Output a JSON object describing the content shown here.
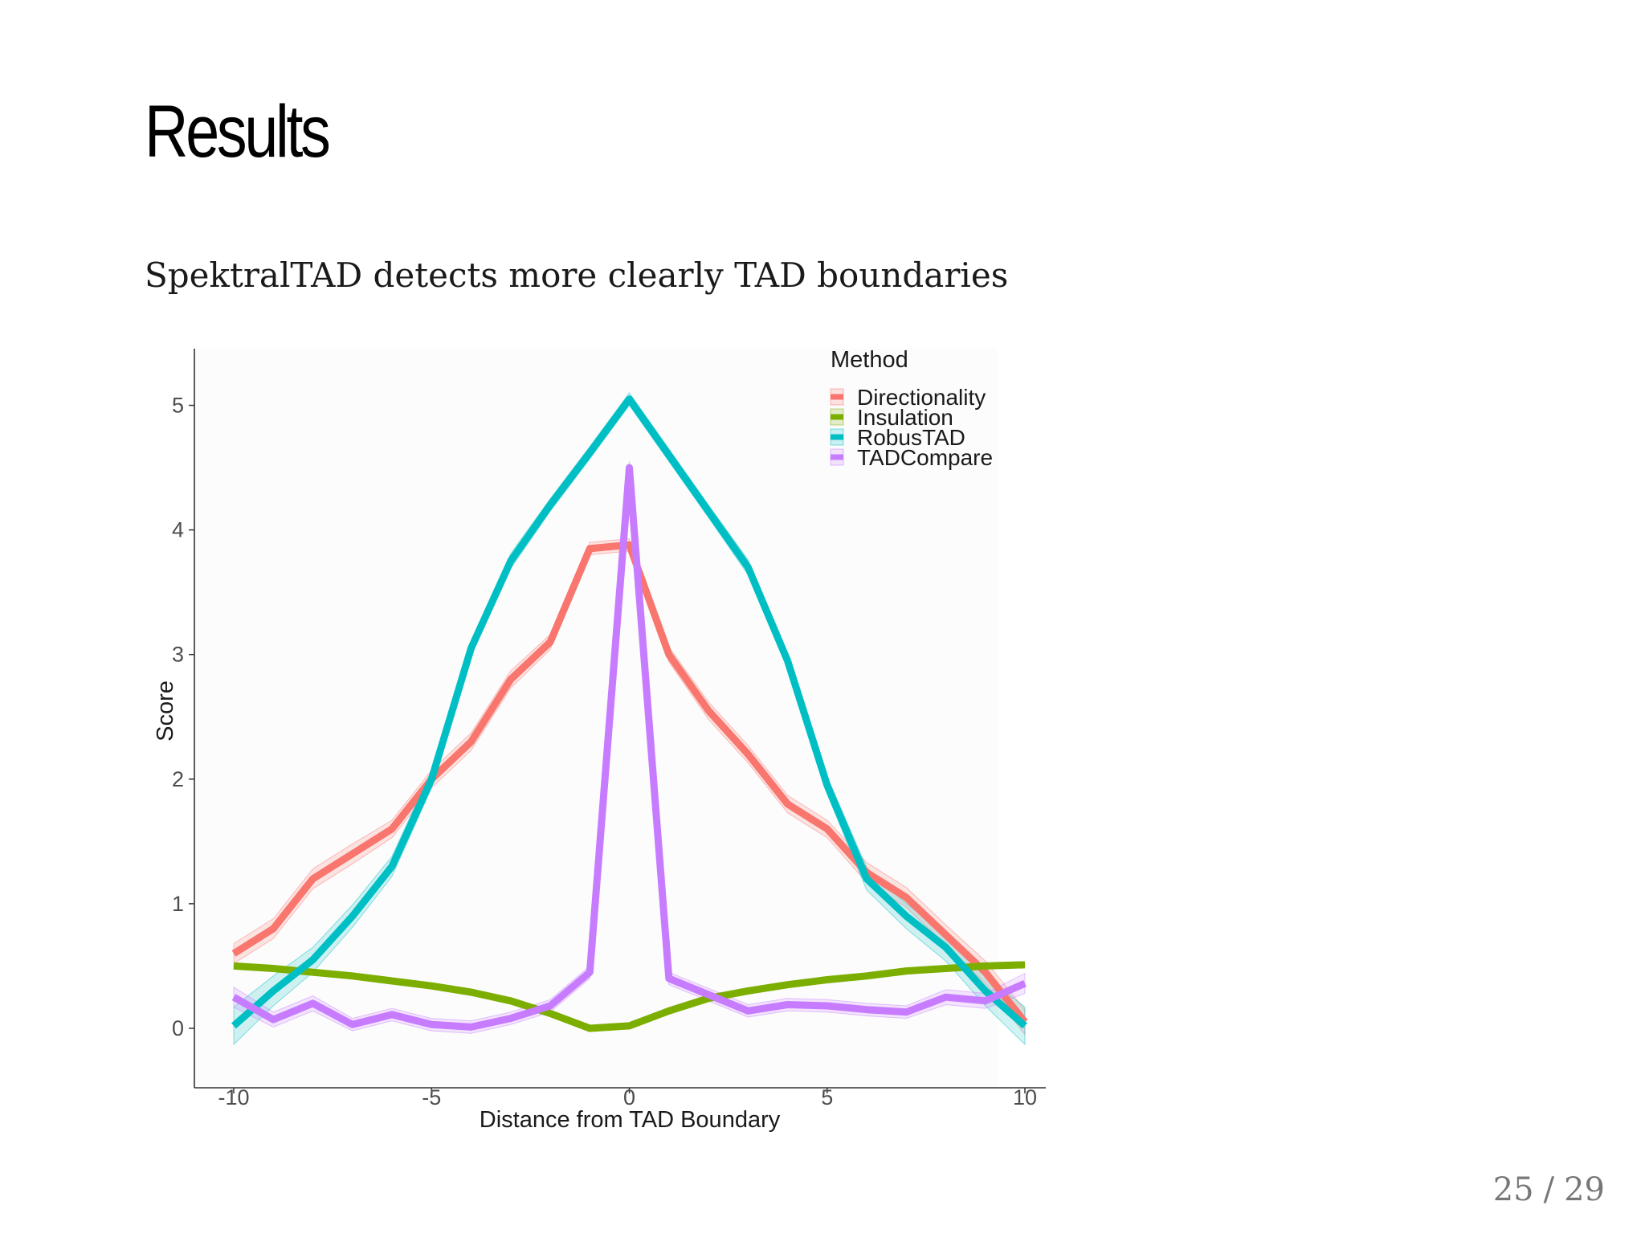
{
  "slide": {
    "title": "Results",
    "subtitle": "SpektralTAD detects more clearly TAD boundaries",
    "page": {
      "current": "25",
      "separator": "/",
      "total": "29"
    }
  },
  "chart_data": {
    "type": "line",
    "title": "",
    "xlabel": "Distance from TAD Boundary",
    "ylabel": "Score",
    "xlim": [
      -10,
      10
    ],
    "ylim": [
      -0.4,
      5.3
    ],
    "xticks": [
      -10,
      -5,
      0,
      5,
      10
    ],
    "xtick_labels": [
      "-10",
      "-5",
      "0",
      "5",
      "10"
    ],
    "yticks": [
      0,
      1,
      2,
      3,
      4,
      5
    ],
    "ytick_labels": [
      "0",
      "1",
      "2",
      "3",
      "4",
      "5"
    ],
    "grid": false,
    "legend": {
      "title": "Method",
      "position": "top-right"
    },
    "x": [
      -10,
      -9,
      -8,
      -7,
      -6,
      -5,
      -4,
      -3,
      -2,
      -1,
      0,
      1,
      2,
      3,
      4,
      5,
      6,
      7,
      8,
      9,
      10
    ],
    "series": [
      {
        "name": "Directionality",
        "color": "#F8766D",
        "values": [
          0.6,
          0.8,
          1.2,
          1.4,
          1.6,
          2.0,
          2.3,
          2.8,
          3.1,
          3.85,
          3.88,
          3.0,
          2.55,
          2.2,
          1.8,
          1.6,
          1.25,
          1.05,
          0.75,
          0.45,
          0.05
        ],
        "band": [
          0.08,
          0.08,
          0.08,
          0.08,
          0.07,
          0.07,
          0.07,
          0.07,
          0.06,
          0.05,
          0.05,
          0.06,
          0.07,
          0.07,
          0.07,
          0.07,
          0.08,
          0.08,
          0.08,
          0.09,
          0.1
        ]
      },
      {
        "name": "Insulation",
        "color": "#7CAE00",
        "values": [
          0.5,
          0.48,
          0.45,
          0.42,
          0.38,
          0.34,
          0.29,
          0.22,
          0.12,
          0.0,
          0.02,
          0.14,
          0.24,
          0.3,
          0.35,
          0.39,
          0.42,
          0.46,
          0.48,
          0.5,
          0.51
        ],
        "band": [
          0.01,
          0.01,
          0.01,
          0.01,
          0.01,
          0.01,
          0.01,
          0.01,
          0.01,
          0.01,
          0.01,
          0.01,
          0.01,
          0.01,
          0.01,
          0.01,
          0.01,
          0.01,
          0.01,
          0.01,
          0.01
        ]
      },
      {
        "name": "RobusTAD",
        "color": "#00BFC4",
        "values": [
          0.02,
          0.3,
          0.55,
          0.9,
          1.3,
          2.0,
          3.05,
          3.75,
          4.2,
          4.62,
          5.05,
          4.6,
          4.15,
          3.7,
          2.95,
          1.95,
          1.2,
          0.9,
          0.65,
          0.3,
          0.02
        ],
        "band": [
          0.15,
          0.12,
          0.1,
          0.09,
          0.08,
          0.07,
          0.06,
          0.06,
          0.05,
          0.05,
          0.05,
          0.05,
          0.05,
          0.06,
          0.06,
          0.07,
          0.09,
          0.1,
          0.11,
          0.12,
          0.15
        ]
      },
      {
        "name": "TADCompare",
        "color": "#C77CFF",
        "values": [
          0.25,
          0.07,
          0.2,
          0.03,
          0.11,
          0.03,
          0.01,
          0.08,
          0.18,
          0.45,
          4.5,
          0.4,
          0.27,
          0.14,
          0.19,
          0.18,
          0.15,
          0.13,
          0.25,
          0.22,
          0.36
        ],
        "band": [
          0.08,
          0.06,
          0.06,
          0.05,
          0.05,
          0.05,
          0.05,
          0.05,
          0.05,
          0.05,
          0.05,
          0.05,
          0.05,
          0.05,
          0.05,
          0.05,
          0.05,
          0.05,
          0.06,
          0.06,
          0.08
        ]
      }
    ]
  }
}
